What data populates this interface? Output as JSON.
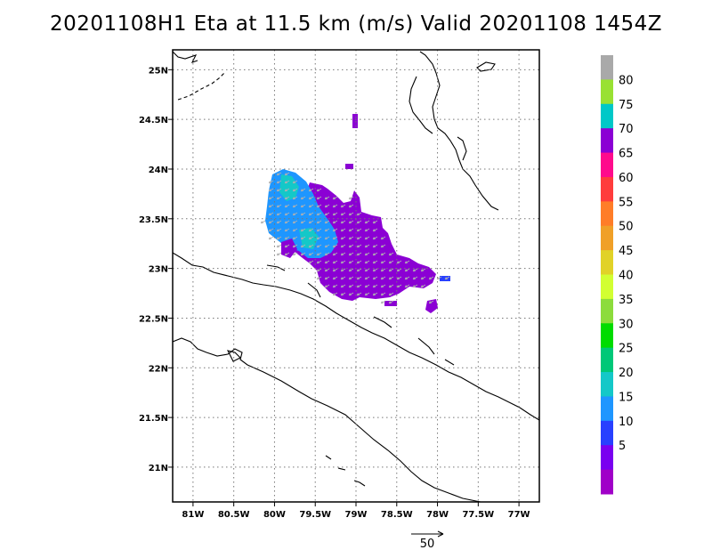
{
  "title": "20201108H1 Eta at 11.5 km (m/s) Valid 20201108 1454Z",
  "map": {
    "lon_range": [
      -81.25,
      -76.75
    ],
    "lat_range": [
      20.65,
      25.2
    ],
    "lon_ticks": [
      "81W",
      "80.5W",
      "80W",
      "79.5W",
      "79W",
      "78.5W",
      "78W",
      "77.5W",
      "77W"
    ],
    "lat_ticks": [
      "25N",
      "24.5N",
      "24N",
      "23.5N",
      "23N",
      "22.5N",
      "22N",
      "21.5N",
      "21N"
    ],
    "grid": true
  },
  "colorbar": {
    "labels": [
      "80",
      "75",
      "70",
      "65",
      "60",
      "55",
      "50",
      "45",
      "40",
      "35",
      "30",
      "25",
      "20",
      "15",
      "10",
      "5"
    ],
    "colors": [
      "#a9a9a9",
      "#99e133",
      "#00c8c8",
      "#8b00d4",
      "#ff0a8c",
      "#ff3c3c",
      "#ff7d28",
      "#f0a028",
      "#e1d228",
      "#d2ff32",
      "#8cdc3c",
      "#00dc00",
      "#00c878",
      "#14c8c8",
      "#1e96ff",
      "#2840ff",
      "#7a00f0",
      "#a000c8"
    ]
  },
  "reference_vector": {
    "label": "50"
  },
  "colors": {
    "wind_purple": "#8b00d4",
    "wind_blue": "#1e96ff",
    "wind_cyan": "#14c8c8",
    "wind_darkblue": "#2840ff",
    "barb": "#b0b0b0",
    "coast": "#000000"
  }
}
